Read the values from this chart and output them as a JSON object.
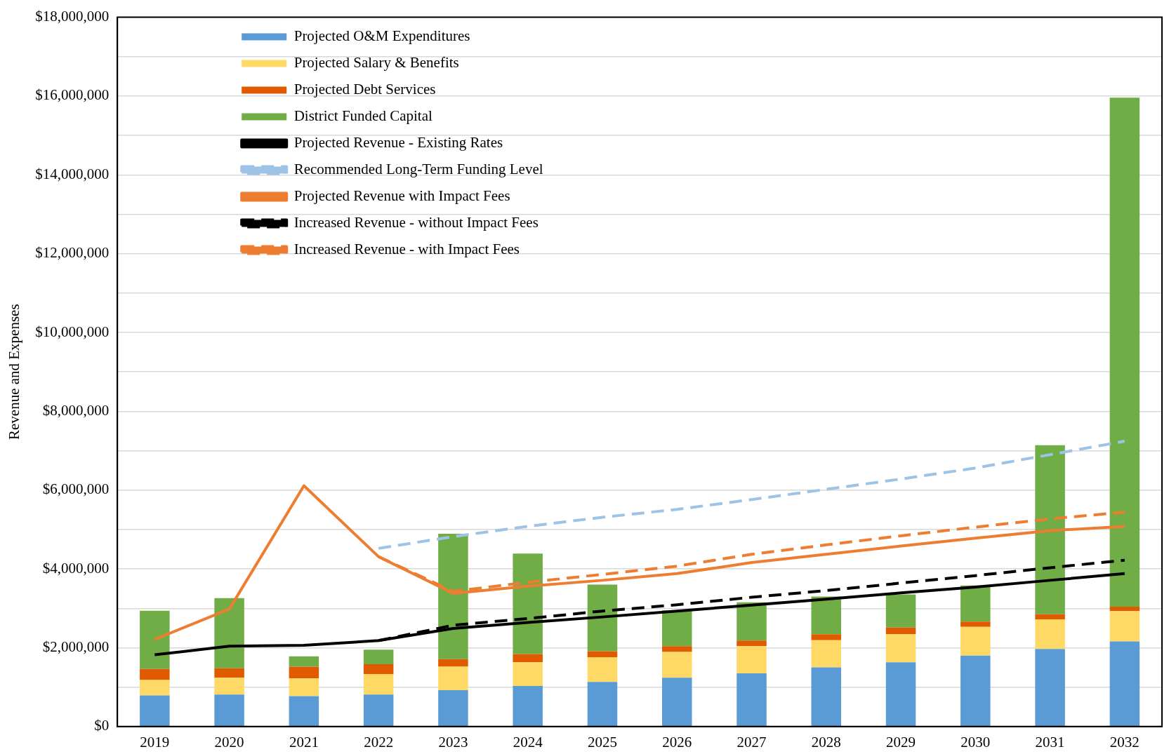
{
  "chart_data": {
    "type": "bar",
    "stacked": true,
    "ylabel": "Revenue and Expenses",
    "categories": [
      "2019",
      "2020",
      "2021",
      "2022",
      "2023",
      "2024",
      "2025",
      "2026",
      "2027",
      "2028",
      "2029",
      "2030",
      "2031",
      "2032"
    ],
    "ylim": [
      0,
      18000000
    ],
    "yticks": [
      {
        "value": 0,
        "label": "$0"
      },
      {
        "value": 1000000,
        "label": null
      },
      {
        "value": 2000000,
        "label": "$2,000,000"
      },
      {
        "value": 3000000,
        "label": null
      },
      {
        "value": 4000000,
        "label": "$4,000,000"
      },
      {
        "value": 5000000,
        "label": null
      },
      {
        "value": 6000000,
        "label": "$6,000,000"
      },
      {
        "value": 7000000,
        "label": null
      },
      {
        "value": 8000000,
        "label": "$8,000,000"
      },
      {
        "value": 9000000,
        "label": null
      },
      {
        "value": 10000000,
        "label": "$10,000,000"
      },
      {
        "value": 11000000,
        "label": null
      },
      {
        "value": 12000000,
        "label": "$12,000,000"
      },
      {
        "value": 13000000,
        "label": null
      },
      {
        "value": 14000000,
        "label": "$14,000,000"
      },
      {
        "value": 15000000,
        "label": null
      },
      {
        "value": 16000000,
        "label": "$16,000,000"
      },
      {
        "value": 17000000,
        "label": null
      },
      {
        "value": 18000000,
        "label": "$18,000,000"
      }
    ],
    "grid": "y",
    "legend": "top left",
    "series": [
      {
        "name": "Projected O&M Expenditures",
        "color": "#5b9bd5",
        "values": [
          790000,
          810000,
          770000,
          810000,
          920000,
          1030000,
          1130000,
          1240000,
          1350000,
          1500000,
          1630000,
          1800000,
          1970000,
          2160000
        ]
      },
      {
        "name": "Projected Salary & Benefits",
        "color": "#ffd966",
        "values": [
          390000,
          430000,
          450000,
          520000,
          600000,
          600000,
          630000,
          650000,
          690000,
          690000,
          710000,
          730000,
          750000,
          770000
        ]
      },
      {
        "name": "Projected Debt Services",
        "color": "#e05a00",
        "values": [
          280000,
          240000,
          300000,
          250000,
          190000,
          210000,
          150000,
          150000,
          140000,
          150000,
          170000,
          130000,
          130000,
          110000
        ]
      },
      {
        "name": "District Funded Capital",
        "color": "#70ad47",
        "values": [
          1480000,
          1780000,
          260000,
          370000,
          3180000,
          2550000,
          1690000,
          910000,
          970000,
          960000,
          840000,
          920000,
          4290000,
          12920000
        ]
      },
      {
        "name": "Projected Revenue - Existing Rates",
        "type": "line",
        "line_style": "solid",
        "color": "#000000",
        "values": [
          1820000,
          2040000,
          2060000,
          2180000,
          2490000,
          2640000,
          2780000,
          2930000,
          3080000,
          3230000,
          3390000,
          3540000,
          3710000,
          3880000
        ]
      },
      {
        "name": "Recommended Long-Term Funding Level",
        "type": "line",
        "line_style": "dashed",
        "color": "#9dc3e6",
        "values": [
          null,
          null,
          null,
          4520000,
          4820000,
          5080000,
          5310000,
          5510000,
          5760000,
          6020000,
          6280000,
          6560000,
          6900000,
          7240000
        ]
      },
      {
        "name": "Projected Revenue with Impact Fees",
        "type": "line",
        "line_style": "solid",
        "color": "#ed7d31",
        "values": [
          2210000,
          2980000,
          6110000,
          4310000,
          3380000,
          3560000,
          3710000,
          3880000,
          4160000,
          4370000,
          4580000,
          4780000,
          4970000,
          5080000
        ]
      },
      {
        "name": "Increased Revenue - without Impact Fees",
        "type": "line",
        "line_style": "dashed",
        "color": "#000000",
        "values": [
          null,
          null,
          null,
          2180000,
          2570000,
          2740000,
          2930000,
          3090000,
          3280000,
          3450000,
          3640000,
          3830000,
          4030000,
          4220000
        ]
      },
      {
        "name": "Increased Revenue - with Impact Fees",
        "type": "line",
        "line_style": "dashed",
        "color": "#ed7d31",
        "values": [
          null,
          null,
          null,
          4310000,
          3430000,
          3660000,
          3860000,
          4070000,
          4370000,
          4610000,
          4840000,
          5060000,
          5270000,
          5440000
        ]
      }
    ]
  }
}
